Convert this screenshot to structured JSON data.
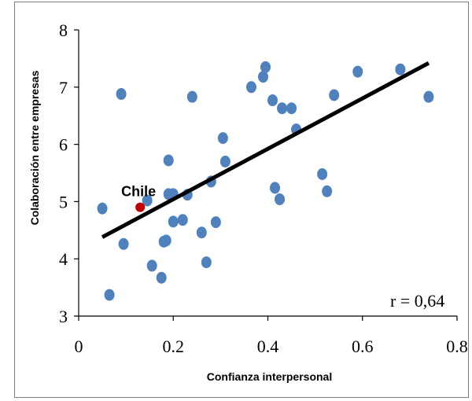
{
  "chart_data": {
    "type": "scatter",
    "title": "",
    "xlabel": "Confianza interpersonal",
    "ylabel": "Colaboración entre empresas",
    "xlim": [
      0,
      0.8
    ],
    "ylim": [
      3,
      8
    ],
    "x_ticks": [
      "0",
      "0.2",
      "0.4",
      "0.6",
      "0.8"
    ],
    "y_ticks": [
      "3",
      "4",
      "5",
      "6",
      "7",
      "8"
    ],
    "grid": false,
    "point_color": "#4f81bd",
    "highlight_color": "#c00000",
    "trendline_color": "#000000",
    "points": [
      {
        "x": 0.05,
        "y": 4.88
      },
      {
        "x": 0.065,
        "y": 3.37
      },
      {
        "x": 0.09,
        "y": 6.88
      },
      {
        "x": 0.095,
        "y": 4.26
      },
      {
        "x": 0.145,
        "y": 5.02
      },
      {
        "x": 0.155,
        "y": 3.88
      },
      {
        "x": 0.175,
        "y": 3.67
      },
      {
        "x": 0.18,
        "y": 4.3
      },
      {
        "x": 0.185,
        "y": 4.32
      },
      {
        "x": 0.19,
        "y": 5.72
      },
      {
        "x": 0.19,
        "y": 5.13
      },
      {
        "x": 0.2,
        "y": 5.13
      },
      {
        "x": 0.2,
        "y": 4.65
      },
      {
        "x": 0.22,
        "y": 4.68
      },
      {
        "x": 0.23,
        "y": 5.12
      },
      {
        "x": 0.24,
        "y": 6.83
      },
      {
        "x": 0.26,
        "y": 4.46
      },
      {
        "x": 0.27,
        "y": 3.94
      },
      {
        "x": 0.28,
        "y": 5.35
      },
      {
        "x": 0.29,
        "y": 4.64
      },
      {
        "x": 0.305,
        "y": 6.11
      },
      {
        "x": 0.31,
        "y": 5.7
      },
      {
        "x": 0.365,
        "y": 7.0
      },
      {
        "x": 0.39,
        "y": 7.18
      },
      {
        "x": 0.395,
        "y": 7.35
      },
      {
        "x": 0.41,
        "y": 6.77
      },
      {
        "x": 0.415,
        "y": 5.24
      },
      {
        "x": 0.425,
        "y": 5.04
      },
      {
        "x": 0.43,
        "y": 6.63
      },
      {
        "x": 0.45,
        "y": 6.63
      },
      {
        "x": 0.46,
        "y": 6.26
      },
      {
        "x": 0.515,
        "y": 5.48
      },
      {
        "x": 0.525,
        "y": 5.18
      },
      {
        "x": 0.54,
        "y": 6.86
      },
      {
        "x": 0.59,
        "y": 7.27
      },
      {
        "x": 0.68,
        "y": 7.31
      },
      {
        "x": 0.74,
        "y": 6.83
      }
    ],
    "highlight": {
      "label": "Chile",
      "x": 0.13,
      "y": 4.9
    },
    "trendline": {
      "x": [
        0.05,
        0.74
      ],
      "y": [
        4.38,
        7.42
      ]
    },
    "annotations": [
      {
        "text": "r = 0,64"
      }
    ]
  }
}
